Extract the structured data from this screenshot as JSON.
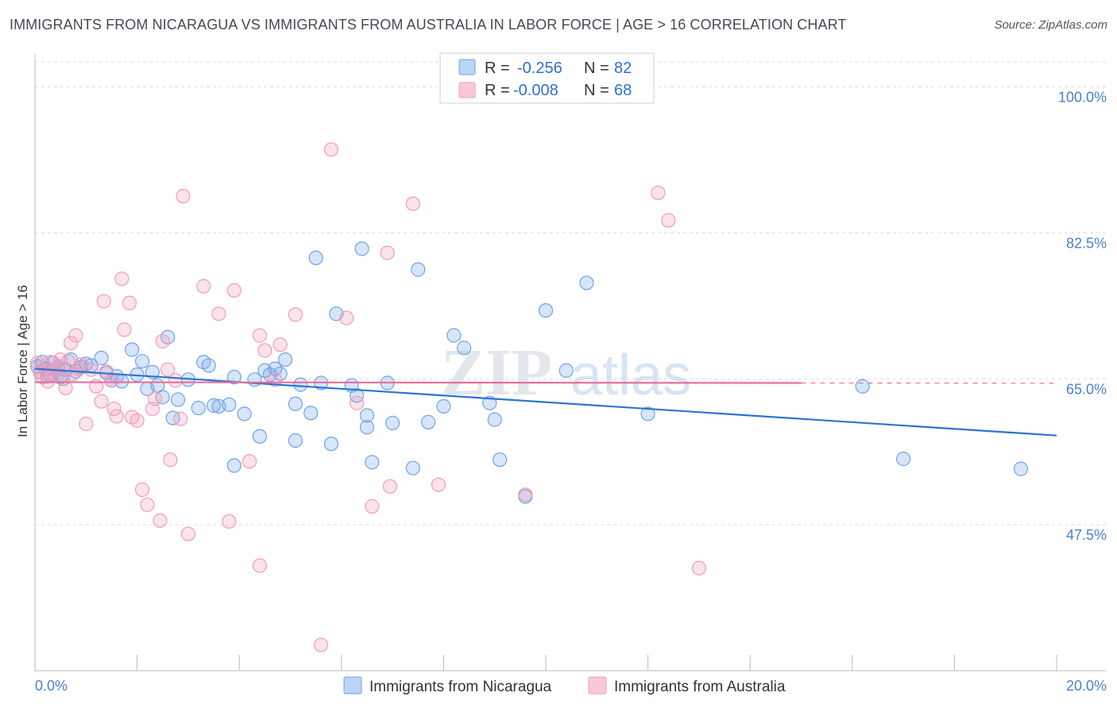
{
  "title": "IMMIGRANTS FROM NICARAGUA VS IMMIGRANTS FROM AUSTRALIA IN LABOR FORCE | AGE > 16 CORRELATION CHART",
  "source": "Source: ZipAtlas.com",
  "watermark": {
    "zip": "ZIP",
    "atlas": "atlas"
  },
  "legend": {
    "rows": [
      {
        "r_label": "R =",
        "r_value": "-0.256",
        "n_label": "N =",
        "n_value": "82",
        "color": "#6fa3e8"
      },
      {
        "r_label": "R =",
        "r_value": "-0.008",
        "n_label": "N =",
        "n_value": "68",
        "color": "#f29bb8"
      }
    ]
  },
  "chart_data": {
    "type": "scatter",
    "title": "IMMIGRANTS FROM NICARAGUA VS IMMIGRANTS FROM AUSTRALIA IN LABOR FORCE | AGE > 16 CORRELATION CHART",
    "xlabel": "",
    "ylabel": "In Labor Force | Age > 16",
    "xlim": [
      0,
      20
    ],
    "ylim": [
      30,
      103
    ],
    "x_tick_labels": [
      "0.0%",
      "20.0%"
    ],
    "y_ticks": [
      47.5,
      65.0,
      82.5,
      100.0
    ],
    "y_tick_labels": [
      "47.5%",
      "65.0%",
      "82.5%",
      "100.0%"
    ],
    "grid": true,
    "series": [
      {
        "name": "Immigrants from Nicaragua",
        "color": "#6fa3e8",
        "line_color": "#2e73d1",
        "trend": {
          "x": [
            0,
            20
          ],
          "y": [
            66.2,
            58.2
          ]
        },
        "points": [
          [
            0.05,
            66.5
          ],
          [
            0.1,
            65.8
          ],
          [
            0.15,
            67.0
          ],
          [
            0.2,
            66.2
          ],
          [
            0.3,
            65.5
          ],
          [
            0.4,
            66.0
          ],
          [
            0.5,
            65.2
          ],
          [
            0.6,
            66.1
          ],
          [
            0.7,
            67.3
          ],
          [
            0.8,
            65.9
          ],
          [
            0.9,
            66.4
          ],
          [
            1.0,
            66.8
          ],
          [
            1.1,
            66.6
          ],
          [
            1.3,
            67.5
          ],
          [
            1.4,
            65.7
          ],
          [
            1.5,
            64.8
          ],
          [
            1.6,
            65.3
          ],
          [
            1.7,
            64.7
          ],
          [
            1.9,
            68.5
          ],
          [
            2.0,
            65.5
          ],
          [
            2.1,
            67.1
          ],
          [
            2.2,
            63.8
          ],
          [
            2.3,
            65.8
          ],
          [
            2.4,
            64.2
          ],
          [
            2.5,
            62.8
          ],
          [
            2.6,
            70.0
          ],
          [
            2.7,
            60.3
          ],
          [
            2.8,
            62.5
          ],
          [
            3.0,
            64.9
          ],
          [
            3.2,
            61.5
          ],
          [
            3.3,
            67.0
          ],
          [
            3.4,
            66.6
          ],
          [
            3.5,
            61.8
          ],
          [
            3.6,
            61.7
          ],
          [
            3.8,
            61.9
          ],
          [
            3.9,
            54.6
          ],
          [
            3.9,
            65.2
          ],
          [
            4.1,
            60.8
          ],
          [
            4.3,
            64.9
          ],
          [
            4.4,
            58.1
          ],
          [
            4.5,
            66.0
          ],
          [
            4.6,
            65.5
          ],
          [
            4.7,
            66.2
          ],
          [
            4.8,
            65.6
          ],
          [
            4.9,
            67.3
          ],
          [
            5.1,
            62.0
          ],
          [
            5.1,
            57.6
          ],
          [
            5.2,
            64.3
          ],
          [
            5.4,
            60.9
          ],
          [
            5.5,
            79.5
          ],
          [
            5.6,
            64.5
          ],
          [
            5.8,
            57.2
          ],
          [
            5.9,
            72.8
          ],
          [
            6.2,
            64.2
          ],
          [
            6.3,
            63.0
          ],
          [
            6.4,
            80.6
          ],
          [
            6.5,
            59.2
          ],
          [
            6.5,
            60.6
          ],
          [
            6.6,
            55.0
          ],
          [
            6.9,
            64.5
          ],
          [
            7.0,
            59.7
          ],
          [
            7.4,
            54.3
          ],
          [
            7.5,
            78.1
          ],
          [
            7.7,
            59.8
          ],
          [
            8.0,
            61.7
          ],
          [
            8.2,
            70.2
          ],
          [
            8.4,
            68.7
          ],
          [
            8.9,
            62.1
          ],
          [
            9.0,
            60.1
          ],
          [
            9.1,
            55.3
          ],
          [
            9.6,
            50.9
          ],
          [
            10.0,
            73.2
          ],
          [
            10.4,
            66.0
          ],
          [
            10.8,
            76.5
          ],
          [
            12.0,
            60.8
          ],
          [
            16.2,
            64.1
          ],
          [
            17.0,
            55.4
          ],
          [
            19.3,
            54.2
          ],
          [
            0.25,
            65.3
          ],
          [
            0.35,
            66.9
          ],
          [
            0.45,
            66.3
          ],
          [
            0.55,
            65.0
          ]
        ]
      },
      {
        "name": "Immigrants from Australia",
        "color": "#f29bb8",
        "line_color": "#e8709a",
        "trend": {
          "x": [
            0,
            15
          ],
          "y": [
            64.6,
            64.5
          ],
          "dashed_extension_x": [
            15,
            20
          ]
        },
        "points": [
          [
            0.05,
            66.9
          ],
          [
            0.1,
            65.8
          ],
          [
            0.2,
            66.3
          ],
          [
            0.3,
            67.0
          ],
          [
            0.35,
            65.6
          ],
          [
            0.45,
            66.5
          ],
          [
            0.5,
            67.3
          ],
          [
            0.6,
            63.9
          ],
          [
            0.7,
            69.3
          ],
          [
            0.8,
            70.2
          ],
          [
            0.9,
            66.7
          ],
          [
            1.0,
            59.6
          ],
          [
            1.1,
            66.1
          ],
          [
            1.2,
            64.1
          ],
          [
            1.3,
            62.3
          ],
          [
            1.35,
            74.3
          ],
          [
            1.4,
            65.9
          ],
          [
            1.5,
            64.8
          ],
          [
            1.55,
            61.4
          ],
          [
            1.6,
            60.5
          ],
          [
            1.7,
            77.0
          ],
          [
            1.75,
            70.9
          ],
          [
            1.85,
            74.1
          ],
          [
            1.9,
            60.4
          ],
          [
            2.0,
            60.0
          ],
          [
            2.1,
            51.7
          ],
          [
            2.2,
            49.9
          ],
          [
            2.3,
            61.4
          ],
          [
            2.35,
            62.6
          ],
          [
            2.45,
            48.0
          ],
          [
            2.5,
            69.5
          ],
          [
            2.6,
            66.1
          ],
          [
            2.65,
            55.3
          ],
          [
            2.75,
            64.8
          ],
          [
            2.85,
            60.2
          ],
          [
            2.9,
            86.9
          ],
          [
            3.0,
            46.4
          ],
          [
            3.3,
            76.1
          ],
          [
            3.6,
            72.8
          ],
          [
            3.8,
            47.9
          ],
          [
            3.9,
            75.6
          ],
          [
            4.2,
            55.1
          ],
          [
            4.4,
            42.6
          ],
          [
            4.4,
            70.2
          ],
          [
            4.5,
            68.4
          ],
          [
            4.7,
            64.9
          ],
          [
            4.8,
            69.1
          ],
          [
            5.1,
            72.7
          ],
          [
            5.6,
            33.1
          ],
          [
            5.8,
            92.5
          ],
          [
            6.1,
            72.3
          ],
          [
            6.3,
            62.1
          ],
          [
            6.6,
            49.7
          ],
          [
            6.9,
            80.1
          ],
          [
            6.95,
            52.1
          ],
          [
            7.4,
            86.0
          ],
          [
            7.9,
            52.3
          ],
          [
            9.6,
            51.1
          ],
          [
            12.2,
            87.3
          ],
          [
            12.4,
            84.0
          ],
          [
            13.0,
            42.3
          ],
          [
            0.15,
            65.2
          ],
          [
            0.25,
            64.7
          ],
          [
            0.4,
            66.0
          ],
          [
            0.55,
            65.4
          ],
          [
            0.65,
            67.1
          ],
          [
            0.75,
            65.6
          ],
          [
            0.85,
            66.2
          ]
        ]
      }
    ]
  },
  "bottom_legend": {
    "items": [
      {
        "label": "Immigrants from Nicaragua",
        "color": "#6fa3e8"
      },
      {
        "label": "Immigrants from Australia",
        "color": "#f29bb8"
      }
    ]
  }
}
